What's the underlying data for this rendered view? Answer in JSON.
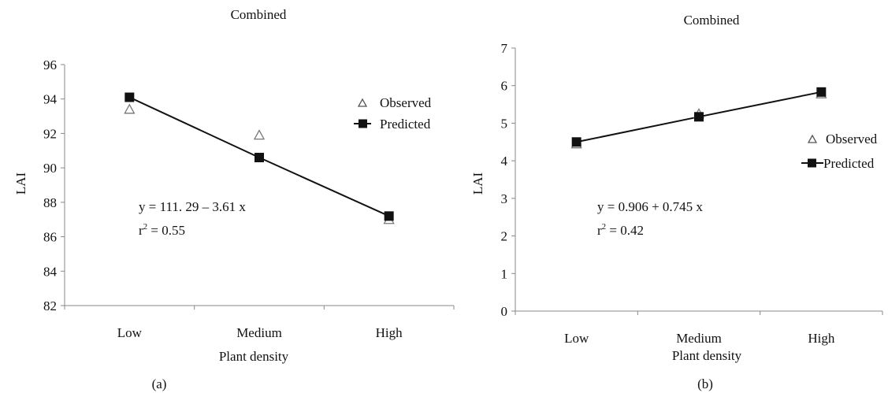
{
  "chart_data": [
    {
      "type": "line",
      "panel_label": "(a)",
      "title": "Combined",
      "xlabel": "Plant density",
      "ylabel": "LAI",
      "categories": [
        "Low",
        "Medium",
        "High"
      ],
      "ylim": [
        82,
        96
      ],
      "yticks": [
        82,
        84,
        86,
        88,
        90,
        92,
        94,
        96
      ],
      "series": [
        {
          "name": "Observed",
          "values": [
            93.4,
            91.9,
            87.0
          ],
          "marker": "triangle-open",
          "color": "#777777"
        },
        {
          "name": "Predicted",
          "values": [
            94.1,
            90.6,
            87.2
          ],
          "marker": "square-filled",
          "color": "#111111",
          "line": true
        }
      ],
      "equation": "y = 111. 29 – 3.61 x",
      "r2_prefix": "r",
      "r2_sup": "2",
      "r2_value": " = 0.55",
      "legend_position": "right"
    },
    {
      "type": "line",
      "panel_label": "(b)",
      "title": "Combined",
      "xlabel": "Plant density",
      "ylabel": "LAI",
      "categories": [
        "Low",
        "Medium",
        "High"
      ],
      "ylim": [
        0,
        7
      ],
      "yticks": [
        0,
        1,
        2,
        3,
        4,
        5,
        6,
        7
      ],
      "series": [
        {
          "name": "Observed",
          "values": [
            4.45,
            5.25,
            5.78
          ],
          "marker": "triangle-open",
          "color": "#777777"
        },
        {
          "name": "Predicted",
          "values": [
            4.5,
            5.17,
            5.83
          ],
          "marker": "square-filled",
          "color": "#111111",
          "line": true
        }
      ],
      "equation": "y = 0.906 + 0.745 x",
      "r2_prefix": "r",
      "r2_sup": "2",
      "r2_value": " = 0.42",
      "legend_position": "right"
    }
  ]
}
